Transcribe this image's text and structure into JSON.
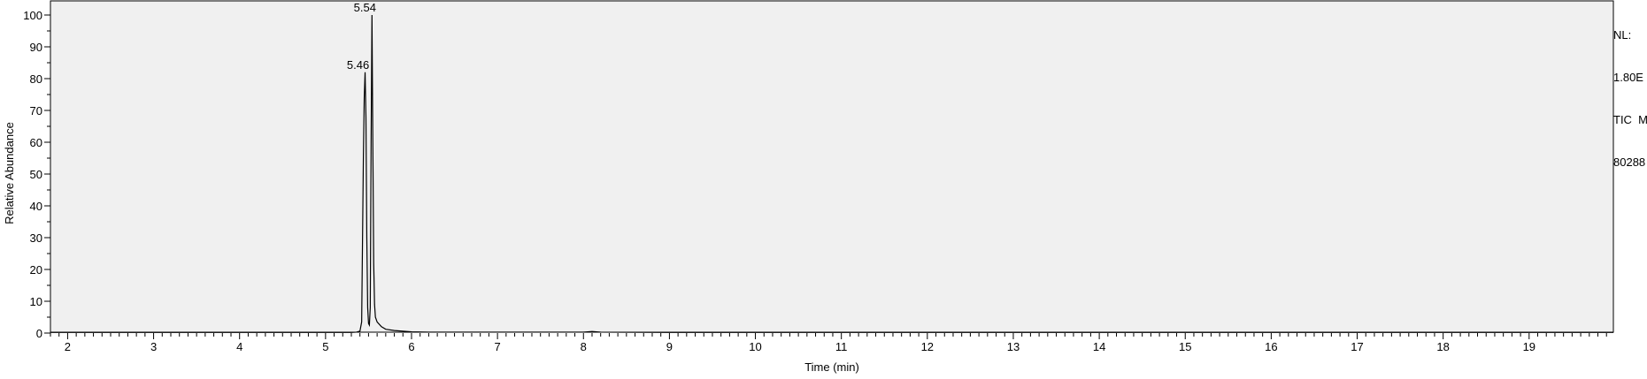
{
  "chart_data": {
    "type": "line",
    "xlabel": "Time (min)",
    "ylabel": "Relative Abundance",
    "xlim": [
      1.8,
      19.98
    ],
    "ylim": [
      0,
      100
    ],
    "xticks": [
      2,
      3,
      4,
      5,
      6,
      7,
      8,
      9,
      10,
      11,
      12,
      13,
      14,
      15,
      16,
      17,
      18,
      19
    ],
    "yticks": [
      0,
      10,
      20,
      30,
      40,
      50,
      60,
      70,
      80,
      90,
      100
    ],
    "grid": false,
    "background": "#f0f0f0",
    "line_color": "#000000",
    "annotations": [
      {
        "x": 5.46,
        "y": 82,
        "text": "5.46"
      },
      {
        "x": 5.54,
        "y": 100,
        "text": "5.54"
      }
    ],
    "series": [
      {
        "x": [
          1.8,
          5.3,
          5.36,
          5.4,
          5.42,
          5.44,
          5.45,
          5.46,
          5.47,
          5.48,
          5.49,
          5.5,
          5.51,
          5.52,
          5.53,
          5.54,
          5.55,
          5.56,
          5.57,
          5.58,
          5.6,
          5.65,
          5.7,
          5.8,
          6.0,
          6.2,
          7.0,
          8.0,
          8.1,
          8.2,
          9.0,
          19.98
        ],
        "y": [
          0.2,
          0.2,
          0.3,
          0.6,
          3.5,
          55,
          74,
          82,
          68,
          30,
          8,
          3,
          2.5,
          8,
          60,
          100,
          60,
          22,
          9,
          5,
          3.5,
          2.0,
          1.2,
          0.8,
          0.4,
          0.3,
          0.3,
          0.3,
          0.5,
          0.3,
          0.2,
          0.2
        ]
      }
    ]
  },
  "nl_panel": {
    "lines": [
      "NL:",
      "1.80E",
      "TIC  M",
      "80288"
    ]
  }
}
